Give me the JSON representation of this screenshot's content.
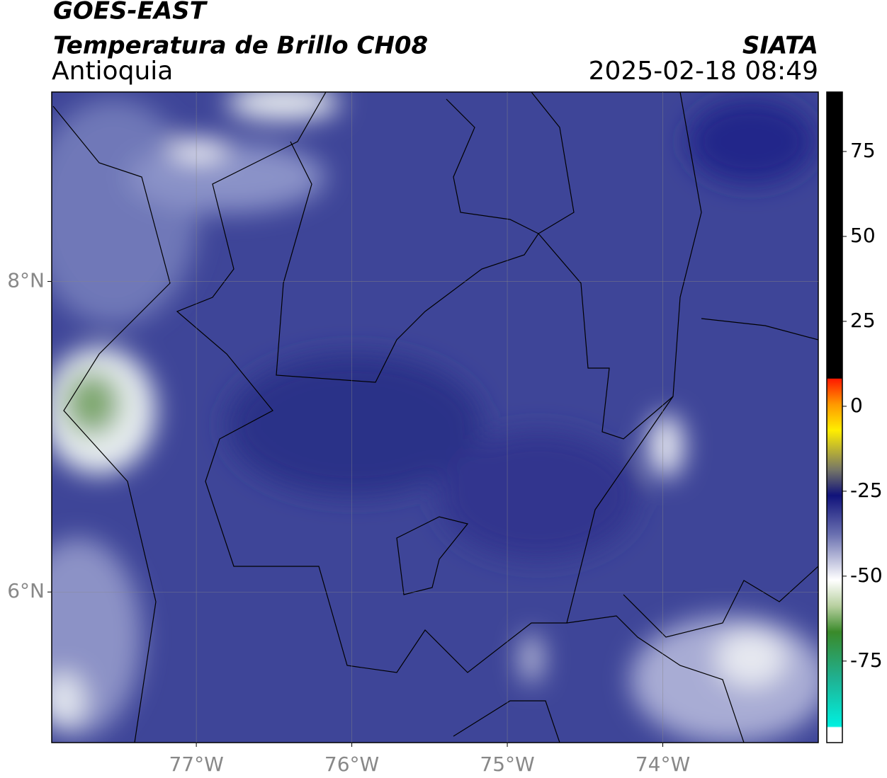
{
  "header": {
    "title": "GOES-EAST",
    "subtitle": "Temperatura de Brillo CH08",
    "region": "Antioquia",
    "agency": "SIATA",
    "timestamp": "2025-02-18 08:49"
  },
  "map": {
    "xlim": [
      -77.93,
      -73.0
    ],
    "ylim": [
      5.03,
      9.22
    ],
    "xticks": [
      {
        "value": -77,
        "label": "77°W"
      },
      {
        "value": -76,
        "label": "76°W"
      },
      {
        "value": -75,
        "label": "75°W"
      },
      {
        "value": -74,
        "label": "74°W"
      }
    ],
    "yticks": [
      {
        "value": 8,
        "label": "8°N"
      },
      {
        "value": 6,
        "label": "6°N"
      }
    ],
    "grid": true
  },
  "colorbar": {
    "lim": [
      -99,
      92.5
    ],
    "ticks": [
      75,
      50,
      25,
      0,
      -25,
      -50,
      -75
    ]
  }
}
